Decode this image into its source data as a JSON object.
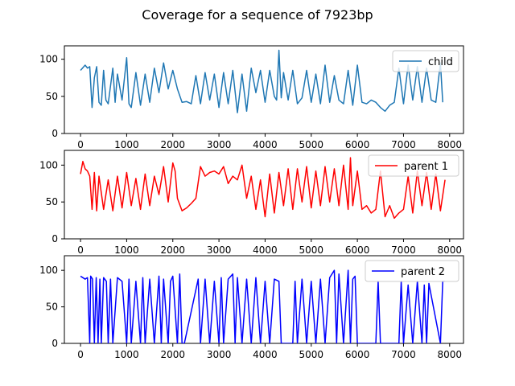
{
  "figure": {
    "title": "Coverage for a sequence of 7923bp"
  },
  "chart_data": [
    {
      "type": "line",
      "title": "",
      "xlabel": "",
      "ylabel": "",
      "xlim": [
        -350,
        8300
      ],
      "ylim": [
        0,
        118
      ],
      "xticks": [
        0,
        1000,
        2000,
        3000,
        4000,
        5000,
        6000,
        7000,
        8000
      ],
      "yticks": [
        0,
        50,
        100
      ],
      "legend_position": "upper right",
      "series": [
        {
          "name": "child",
          "color": "#1f77b4",
          "x": [
            0,
            100,
            150,
            200,
            250,
            300,
            350,
            400,
            450,
            500,
            550,
            600,
            700,
            750,
            800,
            900,
            1000,
            1050,
            1100,
            1200,
            1300,
            1400,
            1500,
            1600,
            1700,
            1800,
            1900,
            2000,
            2100,
            2200,
            2300,
            2400,
            2500,
            2600,
            2700,
            2800,
            2900,
            3000,
            3100,
            3200,
            3300,
            3400,
            3500,
            3600,
            3700,
            3800,
            3900,
            4000,
            4100,
            4200,
            4250,
            4300,
            4350,
            4400,
            4500,
            4600,
            4700,
            4800,
            4900,
            5000,
            5100,
            5200,
            5300,
            5400,
            5500,
            5600,
            5700,
            5800,
            5900,
            6000,
            6100,
            6200,
            6300,
            6400,
            6500,
            6600,
            6700,
            6800,
            6900,
            7000,
            7100,
            7200,
            7300,
            7400,
            7500,
            7600,
            7700,
            7800,
            7850
          ],
          "y": [
            85,
            92,
            88,
            90,
            35,
            75,
            90,
            42,
            38,
            85,
            45,
            40,
            88,
            42,
            80,
            45,
            102,
            40,
            35,
            82,
            38,
            80,
            42,
            88,
            55,
            95,
            60,
            85,
            60,
            42,
            43,
            40,
            78,
            40,
            82,
            45,
            80,
            35,
            82,
            40,
            85,
            28,
            80,
            30,
            88,
            55,
            85,
            42,
            85,
            50,
            45,
            112,
            48,
            82,
            45,
            85,
            40,
            48,
            85,
            42,
            80,
            40,
            92,
            42,
            78,
            45,
            40,
            85,
            38,
            92,
            42,
            40,
            45,
            42,
            35,
            30,
            38,
            42,
            88,
            40,
            92,
            45,
            90,
            42,
            88,
            45,
            42,
            95,
            42
          ]
        }
      ]
    },
    {
      "type": "line",
      "title": "",
      "xlabel": "",
      "ylabel": "",
      "xlim": [
        -350,
        8300
      ],
      "ylim": [
        0,
        120
      ],
      "xticks": [
        0,
        1000,
        2000,
        3000,
        4000,
        5000,
        6000,
        7000,
        8000
      ],
      "yticks": [
        0,
        50,
        100
      ],
      "legend_position": "upper right",
      "series": [
        {
          "name": "parent 1",
          "color": "#ff0000",
          "x": [
            0,
            50,
            100,
            150,
            200,
            250,
            300,
            350,
            400,
            500,
            600,
            700,
            800,
            900,
            1000,
            1100,
            1200,
            1300,
            1400,
            1500,
            1600,
            1700,
            1800,
            1900,
            2000,
            2050,
            2100,
            2200,
            2300,
            2400,
            2500,
            2600,
            2700,
            2800,
            2900,
            3000,
            3100,
            3200,
            3300,
            3400,
            3500,
            3600,
            3700,
            3800,
            3900,
            4000,
            4100,
            4200,
            4300,
            4400,
            4500,
            4600,
            4700,
            4800,
            4900,
            5000,
            5100,
            5200,
            5300,
            5400,
            5500,
            5600,
            5700,
            5800,
            5850,
            5900,
            6000,
            6100,
            6200,
            6300,
            6400,
            6500,
            6600,
            6700,
            6800,
            6900,
            7000,
            7100,
            7200,
            7300,
            7400,
            7500,
            7600,
            7700,
            7800,
            7900
          ],
          "y": [
            88,
            105,
            95,
            92,
            85,
            40,
            90,
            38,
            85,
            40,
            80,
            38,
            85,
            42,
            90,
            45,
            82,
            40,
            88,
            45,
            85,
            60,
            98,
            50,
            103,
            92,
            55,
            38,
            42,
            48,
            55,
            98,
            85,
            90,
            92,
            88,
            98,
            75,
            85,
            80,
            100,
            55,
            85,
            40,
            80,
            30,
            88,
            35,
            90,
            45,
            95,
            40,
            95,
            50,
            98,
            42,
            92,
            45,
            98,
            50,
            95,
            45,
            100,
            40,
            110,
            45,
            92,
            40,
            45,
            35,
            40,
            92,
            30,
            45,
            28,
            35,
            40,
            85,
            35,
            92,
            45,
            90,
            40,
            88,
            38,
            80
          ]
        }
      ]
    },
    {
      "type": "line",
      "title": "",
      "xlabel": "",
      "ylabel": "",
      "xlim": [
        -350,
        8300
      ],
      "ylim": [
        0,
        120
      ],
      "xticks": [
        0,
        1000,
        2000,
        3000,
        4000,
        5000,
        6000,
        7000,
        8000
      ],
      "yticks": [
        0,
        50,
        100
      ],
      "legend_position": "upper right",
      "series": [
        {
          "name": "parent 2",
          "color": "#0000ff",
          "x": [
            0,
            100,
            150,
            200,
            220,
            260,
            300,
            340,
            380,
            420,
            450,
            500,
            560,
            600,
            650,
            700,
            800,
            900,
            1000,
            1050,
            1100,
            1200,
            1300,
            1350,
            1400,
            1500,
            1600,
            1700,
            1750,
            1800,
            1900,
            1950,
            2000,
            2100,
            2150,
            2200,
            2250,
            2550,
            2600,
            2700,
            2800,
            2900,
            3000,
            3050,
            3100,
            3200,
            3300,
            3350,
            3400,
            3500,
            3600,
            3700,
            3800,
            3900,
            4000,
            4100,
            4200,
            4300,
            4350,
            4600,
            4650,
            4700,
            4800,
            4900,
            5000,
            5100,
            5200,
            5300,
            5400,
            5500,
            5550,
            5600,
            5700,
            5800,
            5850,
            5900,
            5950,
            6000,
            6050,
            6400,
            6450,
            6500,
            6550,
            6900,
            6950,
            7000,
            7100,
            7200,
            7300,
            7400,
            7450,
            7500,
            7550,
            7800,
            7850,
            7900
          ],
          "y": [
            92,
            88,
            90,
            0,
            92,
            88,
            0,
            90,
            0,
            88,
            0,
            90,
            85,
            0,
            88,
            0,
            90,
            85,
            0,
            88,
            0,
            85,
            0,
            90,
            0,
            88,
            0,
            92,
            0,
            88,
            0,
            85,
            92,
            0,
            95,
            0,
            0,
            88,
            0,
            88,
            0,
            85,
            0,
            90,
            0,
            88,
            95,
            0,
            90,
            0,
            88,
            0,
            90,
            0,
            85,
            0,
            88,
            85,
            0,
            0,
            85,
            0,
            88,
            0,
            85,
            0,
            88,
            0,
            90,
            100,
            0,
            95,
            0,
            100,
            0,
            88,
            92,
            0,
            0,
            0,
            85,
            0,
            0,
            0,
            85,
            0,
            80,
            0,
            85,
            0,
            80,
            0,
            82,
            0,
            85,
            85
          ]
        }
      ]
    }
  ]
}
